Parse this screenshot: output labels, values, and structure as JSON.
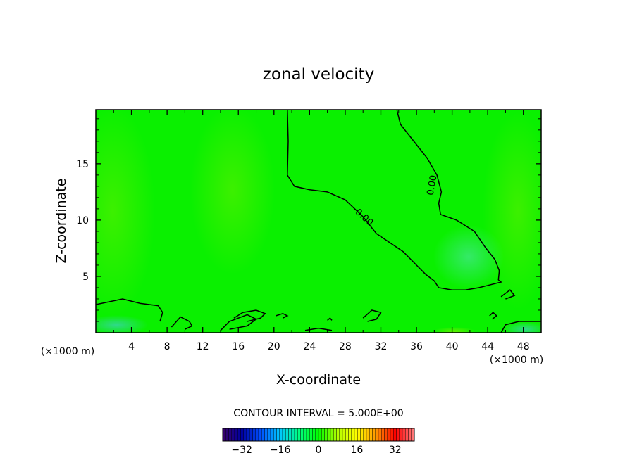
{
  "chart_data": {
    "type": "heatmap",
    "title": "zonal velocity",
    "xlabel": "X-coordinate",
    "ylabel": "Z-coordinate",
    "x_unit_left": "(×1000 m)",
    "x_unit_right": "(×1000 m)",
    "xlim": [
      0,
      50
    ],
    "ylim": [
      0,
      19.8
    ],
    "xticks": [
      4,
      8,
      12,
      16,
      20,
      24,
      28,
      32,
      36,
      40,
      44,
      48
    ],
    "yticks": [
      5,
      10,
      15
    ],
    "contour_interval_text": "CONTOUR INTERVAL = 5.000E+00",
    "contour_labels": [
      "0.00",
      "0.00"
    ],
    "field_value_dominant": 0,
    "colorbar": {
      "min": -40,
      "max": 40,
      "ticks": [
        -32,
        -16,
        0,
        16,
        32
      ],
      "colors": [
        "#3a0066",
        "#0000a0",
        "#0050ff",
        "#00c8ff",
        "#00ff80",
        "#00ff00",
        "#b4ff00",
        "#ffff00",
        "#ff9600",
        "#ff0000",
        "#ff8080"
      ]
    },
    "contours": [
      {
        "level": 0,
        "points": [
          [
            21.5,
            19.8
          ],
          [
            21.6,
            17
          ],
          [
            21.5,
            14
          ],
          [
            22.3,
            13
          ],
          [
            24,
            12.7
          ],
          [
            26,
            12.5
          ],
          [
            28,
            11.8
          ],
          [
            30,
            10.3
          ],
          [
            31.5,
            8.8
          ],
          [
            33,
            8
          ],
          [
            34.5,
            7.2
          ],
          [
            36,
            6
          ],
          [
            37,
            5.2
          ],
          [
            38,
            4.6
          ],
          [
            38.5,
            4
          ],
          [
            40,
            3.8
          ],
          [
            41.5,
            3.8
          ],
          [
            43,
            4
          ],
          [
            44,
            4.2
          ],
          [
            45.5,
            4.5
          ],
          [
            45.2,
            4.7
          ],
          [
            45.3,
            5.5
          ],
          [
            44.8,
            6.5
          ],
          [
            43.8,
            7.5
          ],
          [
            42.5,
            9
          ],
          [
            40.5,
            10
          ],
          [
            38.7,
            10.5
          ],
          [
            38.5,
            11.5
          ],
          [
            38.8,
            12.5
          ],
          [
            38.3,
            14
          ],
          [
            37.2,
            15.5
          ],
          [
            35.5,
            17.2
          ],
          [
            34.2,
            18.5
          ],
          [
            33.8,
            19.8
          ]
        ]
      },
      {
        "level": 0,
        "points": [
          [
            0,
            2.5
          ],
          [
            3,
            3
          ],
          [
            5,
            2.6
          ],
          [
            7,
            2.4
          ],
          [
            7.5,
            1.8
          ],
          [
            7.2,
            1
          ]
        ]
      },
      {
        "level": 0,
        "points": [
          [
            14,
            0.2
          ],
          [
            15,
            1
          ],
          [
            17,
            1.6
          ],
          [
            18,
            1.2
          ],
          [
            17,
            0.6
          ],
          [
            15,
            0.3
          ]
        ]
      },
      {
        "level": 0,
        "points": [
          [
            15.5,
            1.3
          ],
          [
            16.5,
            1.8
          ],
          [
            18,
            2
          ],
          [
            19,
            1.7
          ],
          [
            18.5,
            1.3
          ],
          [
            17,
            1
          ]
        ]
      },
      {
        "level": 0,
        "points": [
          [
            20.2,
            1.5
          ],
          [
            21,
            1.7
          ],
          [
            21.5,
            1.5
          ],
          [
            21,
            1.3
          ]
        ]
      },
      {
        "level": 0,
        "points": [
          [
            30,
            1.3
          ],
          [
            31,
            2
          ],
          [
            32,
            1.8
          ],
          [
            31.5,
            1.2
          ],
          [
            30.5,
            1
          ]
        ]
      },
      {
        "level": 0,
        "points": [
          [
            44.2,
            1.5
          ],
          [
            44.6,
            1.8
          ],
          [
            45,
            1.5
          ],
          [
            44.5,
            1.2
          ]
        ]
      },
      {
        "level": 0,
        "points": [
          [
            45.5,
            3.2
          ],
          [
            46.5,
            3.8
          ],
          [
            47,
            3.3
          ],
          [
            46,
            3
          ]
        ]
      },
      {
        "level": 0,
        "points": [
          [
            45.5,
            0
          ],
          [
            46,
            0.7
          ],
          [
            47.5,
            1
          ],
          [
            50,
            1
          ]
        ]
      },
      {
        "level": 0,
        "points": [
          [
            8.5,
            0.5
          ],
          [
            9.5,
            1.4
          ],
          [
            10.5,
            1
          ],
          [
            10.8,
            0.6
          ],
          [
            10,
            0.3
          ]
        ]
      },
      {
        "level": 0,
        "points": [
          [
            23.5,
            0.2
          ],
          [
            25,
            0.4
          ],
          [
            26.5,
            0.2
          ]
        ]
      },
      {
        "level": 0,
        "points": [
          [
            26,
            1.1
          ],
          [
            26.3,
            1.3
          ],
          [
            26.5,
            1.1
          ]
        ]
      }
    ]
  }
}
